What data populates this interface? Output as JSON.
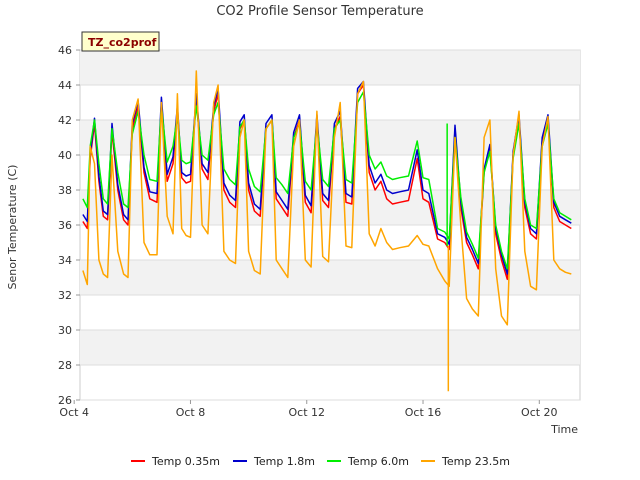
{
  "chart_data": {
    "type": "line",
    "title": "CO2 Profile Sensor Temperature",
    "xlabel": "Time",
    "ylabel": "Senor Temperature (C)",
    "badge": "TZ_co2prof",
    "xlim": [
      4.2,
      21.4
    ],
    "ylim": [
      26,
      46
    ],
    "yticks": [
      26,
      28,
      30,
      32,
      34,
      36,
      38,
      40,
      42,
      44,
      46
    ],
    "xticks": [
      {
        "value": 4,
        "label": "Oct 4"
      },
      {
        "value": 8,
        "label": "Oct 8"
      },
      {
        "value": 12,
        "label": "Oct 12"
      },
      {
        "value": 16,
        "label": "Oct 16"
      },
      {
        "value": 20,
        "label": "Oct 20"
      }
    ],
    "grid": true,
    "legend_position": "bottom",
    "x_unit": "day of October",
    "series": [
      {
        "name": "Temp 0.35m",
        "color": "#ff0000",
        "x": [
          4.3,
          4.45,
          4.55,
          4.7,
          4.85,
          5.0,
          5.15,
          5.3,
          5.5,
          5.7,
          5.85,
          6.0,
          6.2,
          6.4,
          6.6,
          6.85,
          7.0,
          7.2,
          7.4,
          7.55,
          7.7,
          7.85,
          8.0,
          8.2,
          8.4,
          8.6,
          8.8,
          8.95,
          9.15,
          9.35,
          9.55,
          9.7,
          9.85,
          10.0,
          10.2,
          10.4,
          10.6,
          10.8,
          10.95,
          11.15,
          11.35,
          11.55,
          11.75,
          11.95,
          12.15,
          12.35,
          12.55,
          12.75,
          12.95,
          13.15,
          13.35,
          13.55,
          13.75,
          13.95,
          14.15,
          14.35,
          14.55,
          14.75,
          14.95,
          15.2,
          15.5,
          15.8,
          16.0,
          16.2,
          16.5,
          16.75,
          16.9,
          17.1,
          17.3,
          17.5,
          17.7,
          17.9,
          18.1,
          18.3,
          18.5,
          18.7,
          18.9,
          19.1,
          19.3,
          19.5,
          19.7,
          19.9,
          20.1,
          20.3,
          20.5,
          20.7,
          20.9,
          21.1
        ],
        "y": [
          36.2,
          35.8,
          39.8,
          41.8,
          38.5,
          36.5,
          36.3,
          41.4,
          38.0,
          36.3,
          36.0,
          41.5,
          42.8,
          39.0,
          37.5,
          37.3,
          43.0,
          38.5,
          39.5,
          42.5,
          38.7,
          38.4,
          38.5,
          43.2,
          39.2,
          38.6,
          42.5,
          43.5,
          38.0,
          37.3,
          37.0,
          41.5,
          42.0,
          38.0,
          36.8,
          36.5,
          41.5,
          42.0,
          37.5,
          37.0,
          36.5,
          41.0,
          42.0,
          37.3,
          36.7,
          42.0,
          37.4,
          37.0,
          41.5,
          42.2,
          37.3,
          37.2,
          43.5,
          44.0,
          39.0,
          38.0,
          38.5,
          37.5,
          37.2,
          37.3,
          37.4,
          39.8,
          37.5,
          37.3,
          35.2,
          35.0,
          34.6,
          41.5,
          37.0,
          35.0,
          34.3,
          33.5,
          39.0,
          40.5,
          35.5,
          34.0,
          32.9,
          40.0,
          42.0,
          37.0,
          35.5,
          35.2,
          40.8,
          42.0,
          37.0,
          36.2,
          36.0,
          35.8
        ]
      },
      {
        "name": "Temp 1.8m",
        "color": "#0000cc",
        "x": [
          4.3,
          4.45,
          4.55,
          4.7,
          4.85,
          5.0,
          5.15,
          5.3,
          5.5,
          5.7,
          5.85,
          6.0,
          6.2,
          6.4,
          6.6,
          6.85,
          7.0,
          7.2,
          7.4,
          7.55,
          7.7,
          7.85,
          8.0,
          8.2,
          8.4,
          8.6,
          8.8,
          8.95,
          9.15,
          9.35,
          9.55,
          9.7,
          9.85,
          10.0,
          10.2,
          10.4,
          10.6,
          10.8,
          10.95,
          11.15,
          11.35,
          11.55,
          11.75,
          11.95,
          12.15,
          12.35,
          12.55,
          12.75,
          12.95,
          13.15,
          13.35,
          13.55,
          13.75,
          13.95,
          14.15,
          14.35,
          14.55,
          14.75,
          14.95,
          15.2,
          15.5,
          15.8,
          16.0,
          16.2,
          16.5,
          16.75,
          16.9,
          17.1,
          17.3,
          17.5,
          17.7,
          17.9,
          18.1,
          18.3,
          18.5,
          18.7,
          18.9,
          19.1,
          19.3,
          19.5,
          19.7,
          19.9,
          20.1,
          20.3,
          20.5,
          20.7,
          20.9,
          21.1
        ],
        "y": [
          36.6,
          36.2,
          40.0,
          42.1,
          38.8,
          36.8,
          36.6,
          41.8,
          38.3,
          36.6,
          36.3,
          41.8,
          43.1,
          39.3,
          37.9,
          37.8,
          43.3,
          38.9,
          39.9,
          42.8,
          39.0,
          38.8,
          38.9,
          43.5,
          39.5,
          39.0,
          42.8,
          43.8,
          38.4,
          37.7,
          37.4,
          41.9,
          42.3,
          38.4,
          37.2,
          36.9,
          41.8,
          42.3,
          37.9,
          37.4,
          36.9,
          41.3,
          42.3,
          37.7,
          37.1,
          42.3,
          37.8,
          37.4,
          41.8,
          42.5,
          37.8,
          37.6,
          43.8,
          44.2,
          39.4,
          38.4,
          38.9,
          38.0,
          37.8,
          37.9,
          38.0,
          40.3,
          38.0,
          37.8,
          35.5,
          35.3,
          34.9,
          41.7,
          37.3,
          35.3,
          34.6,
          33.8,
          39.2,
          40.6,
          35.8,
          34.3,
          33.2,
          40.2,
          42.3,
          37.3,
          35.8,
          35.5,
          41.0,
          42.3,
          37.3,
          36.5,
          36.3,
          36.1
        ]
      },
      {
        "name": "Temp 6.0m",
        "color": "#00ee00",
        "x": [
          4.3,
          4.45,
          4.55,
          4.7,
          4.85,
          5.0,
          5.15,
          5.3,
          5.5,
          5.7,
          5.85,
          6.0,
          6.2,
          6.4,
          6.6,
          6.85,
          7.0,
          7.2,
          7.4,
          7.55,
          7.7,
          7.85,
          8.0,
          8.2,
          8.4,
          8.6,
          8.8,
          8.95,
          9.15,
          9.35,
          9.55,
          9.7,
          9.85,
          10.0,
          10.2,
          10.4,
          10.6,
          10.8,
          10.95,
          11.15,
          11.35,
          11.55,
          11.75,
          11.95,
          12.15,
          12.35,
          12.55,
          12.75,
          12.95,
          13.15,
          13.35,
          13.55,
          13.75,
          13.95,
          14.15,
          14.35,
          14.55,
          14.75,
          14.95,
          15.2,
          15.5,
          15.8,
          16.0,
          16.2,
          16.5,
          16.75,
          16.9,
          17.1,
          17.3,
          17.5,
          17.7,
          17.9,
          18.1,
          18.3,
          18.5,
          18.7,
          18.9,
          19.1,
          19.3,
          19.5,
          19.7,
          19.9,
          20.1,
          20.3,
          20.5,
          20.7,
          20.9,
          21.1
        ],
        "y": [
          37.5,
          37.0,
          40.5,
          42.0,
          39.5,
          37.5,
          37.2,
          41.5,
          39.0,
          37.2,
          37.0,
          41.2,
          42.5,
          40.0,
          38.6,
          38.5,
          42.8,
          39.6,
          40.5,
          42.2,
          39.7,
          39.5,
          39.6,
          42.8,
          40.0,
          39.7,
          42.3,
          43.0,
          39.2,
          38.6,
          38.3,
          41.6,
          42.0,
          39.2,
          38.2,
          37.9,
          41.5,
          42.0,
          38.7,
          38.3,
          37.8,
          41.0,
          41.8,
          38.5,
          38.0,
          41.8,
          38.6,
          38.2,
          41.5,
          42.0,
          38.6,
          38.4,
          43.0,
          43.6,
          40.0,
          39.2,
          39.6,
          38.8,
          38.6,
          38.7,
          38.8,
          40.8,
          38.7,
          38.6,
          35.8,
          35.6,
          35.2,
          41.0,
          37.6,
          35.6,
          34.9,
          34.1,
          39.0,
          40.2,
          36.0,
          34.5,
          33.5,
          39.8,
          41.8,
          37.5,
          36.0,
          35.8,
          40.5,
          41.8,
          37.5,
          36.7,
          36.5,
          36.3
        ]
      },
      {
        "name": "Temp 23.5m",
        "color": "#ffa500",
        "x": [
          4.3,
          4.45,
          4.55,
          4.7,
          4.85,
          5.0,
          5.15,
          5.3,
          5.5,
          5.7,
          5.85,
          6.0,
          6.2,
          6.4,
          6.6,
          6.85,
          7.0,
          7.2,
          7.4,
          7.55,
          7.7,
          7.85,
          8.0,
          8.2,
          8.4,
          8.6,
          8.8,
          8.95,
          9.15,
          9.35,
          9.55,
          9.7,
          9.85,
          10.0,
          10.2,
          10.4,
          10.6,
          10.8,
          10.95,
          11.15,
          11.35,
          11.55,
          11.75,
          11.95,
          12.15,
          12.35,
          12.55,
          12.75,
          12.95,
          13.15,
          13.35,
          13.55,
          13.75,
          13.95,
          14.15,
          14.35,
          14.55,
          14.75,
          14.95,
          15.2,
          15.5,
          15.8,
          16.0,
          16.2,
          16.5,
          16.75,
          16.9,
          17.1,
          17.3,
          17.5,
          17.7,
          17.9,
          18.1,
          18.3,
          18.5,
          18.7,
          18.9,
          19.1,
          19.3,
          19.5,
          19.7,
          19.9,
          20.1,
          20.3,
          20.5,
          20.7,
          20.9,
          21.1
        ],
        "y": [
          33.4,
          32.6,
          40.5,
          39.5,
          34.0,
          33.2,
          33.0,
          40.0,
          34.5,
          33.2,
          33.0,
          42.0,
          43.2,
          35.0,
          34.3,
          34.3,
          43.0,
          36.5,
          35.5,
          43.5,
          35.8,
          35.4,
          35.3,
          44.8,
          36.0,
          35.5,
          43.0,
          44.0,
          34.5,
          34.0,
          33.8,
          41.0,
          42.0,
          34.5,
          33.4,
          33.2,
          41.5,
          42.0,
          34.0,
          33.5,
          33.0,
          40.5,
          42.0,
          34.0,
          33.6,
          42.5,
          34.2,
          33.9,
          41.0,
          43.0,
          34.8,
          34.7,
          43.5,
          44.2,
          35.5,
          34.8,
          35.8,
          35.0,
          34.6,
          34.7,
          34.8,
          35.4,
          34.9,
          34.8,
          33.5,
          32.8,
          32.5,
          41.0,
          36.0,
          31.8,
          31.2,
          30.8,
          41.0,
          42.0,
          33.5,
          30.8,
          30.3,
          40.0,
          42.5,
          34.5,
          32.5,
          32.3,
          40.5,
          42.2,
          34.0,
          33.5,
          33.3,
          33.2
        ]
      }
    ],
    "annotations": [
      {
        "series": "Temp 23.5m",
        "x": 16.87,
        "y": 26.5,
        "note": "sharp dip"
      },
      {
        "series": "Temp 6.0m",
        "x": 16.83,
        "y": 41.8,
        "note": "sharp spike"
      }
    ]
  }
}
